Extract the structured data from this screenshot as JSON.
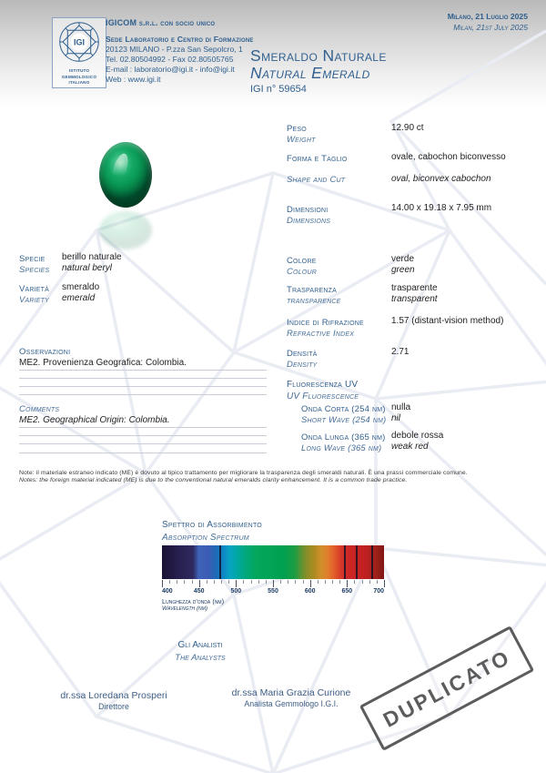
{
  "header": {
    "logo": {
      "acronym": "IGI",
      "institute_lines": [
        "ISTITUTO",
        "GEMMOLOGICO",
        "ITALIANO"
      ]
    },
    "company_line": "IGICOM s.r.l. con socio unico",
    "lab_line": "Sede Laboratorio e Centro di Formazione",
    "address": "20123 MILANO - P.zza San Sepolcro, 1",
    "phone": "Tel. 02.80504992 - Fax 02.80505765",
    "email": "E-mail : laboratorio@igi.it - info@igi.it",
    "web": "Web :  www.igi.it",
    "date_it": "Milano, 21 Luglio 2025",
    "date_en": "Milan, 21st July 2025"
  },
  "title": {
    "it": "Smeraldo Naturale",
    "en": "Natural Emerald",
    "cert_no": "IGI n° 59654"
  },
  "props": {
    "peso": {
      "it": "Peso",
      "en": "Weight",
      "value": "12.90 ct"
    },
    "forma": {
      "it": "Forma e Taglio",
      "en": "Shape and Cut",
      "value_it": "ovale, cabochon biconvesso",
      "value_en": "oval, biconvex cabochon"
    },
    "dimensioni": {
      "it": "Dimensioni",
      "en": "Dimensions",
      "value": "14.00 x 19.18 x 7.95 mm"
    },
    "specie": {
      "it": "Specie",
      "en": "Species",
      "value_it": "berillo naturale",
      "value_en": "natural beryl"
    },
    "varieta": {
      "it": "Varietà",
      "en": "Variety",
      "value_it": "smeraldo",
      "value_en": "emerald"
    },
    "colore": {
      "it": "Colore",
      "en": "Colour",
      "value_it": "verde",
      "value_en": "green"
    },
    "trasparenza": {
      "it": "Trasparenza",
      "en": "transparence",
      "value_it": "trasparente",
      "value_en": "transparent"
    },
    "rifrazione": {
      "it": "Indice di Rifrazione",
      "en": "Refractive Index",
      "value": "1.57 (distant-vision method)"
    },
    "densita": {
      "it": "Densità",
      "en": "Density",
      "value": "2.71"
    },
    "fluorescenza": {
      "it": "Fluorescenza UV",
      "en": "UV Fluorescence"
    },
    "onda_corta": {
      "it": "Onda Corta (254 nm)",
      "en": "Short Wave (254 nm)",
      "value_it": "nulla",
      "value_en": "nil"
    },
    "onda_lunga": {
      "it": "Onda Lunga (365 nm)",
      "en": "Long Wave (365 nm)",
      "value_it": "debole rossa",
      "value_en": "weak red"
    }
  },
  "observations": {
    "label_it": "Osservazioni",
    "text_it": "ME2. Provenienza Geografica: Colombia.",
    "label_en": "Comments",
    "text_en": "ME2. Geographical Origin: Colombia."
  },
  "note": {
    "it": "Note: il materiale estraneo indicato (ME) è dovuto al tipico trattamento per migliorare la trasparenza degli smeraldi naturali. È una prassi commerciale comune.",
    "en": "Notes: the foreign material indicated (ME) is due to the conventional natural emeralds clarity enhancement. It is a common trade practice."
  },
  "spectrum": {
    "title_it": "Spettro di Assorbimento",
    "title_en": "Absorption Spectrum",
    "xlabel_it": "Lunghezza d'onda (nm)",
    "xlabel_en": "Wavelength (nm)",
    "range": [
      400,
      700
    ],
    "tick_step_nm": 10,
    "labeled_ticks": [
      400,
      450,
      500,
      550,
      600,
      650,
      700
    ],
    "absorption_lines_nm": [
      477,
      646,
      662,
      683
    ]
  },
  "analysts": {
    "heading_it": "Gli Analisti",
    "heading_en": "The Analysts",
    "people": [
      {
        "name": "dr.ssa Loredana Prosperi",
        "role": "Direttore"
      },
      {
        "name": "dr.ssa Maria Grazia Curione",
        "role": "Analista Gemmologo I.G.I."
      }
    ]
  },
  "stamp": {
    "text": "DUPLICATO"
  },
  "colors": {
    "label_blue": "#31608f",
    "value_black": "#1f1f1f",
    "tick_navy": "#1d3c66",
    "stamp_gray": "#5c5c5c",
    "pattern_gray": "#eaecf3",
    "emerald_green": "#0a9a57"
  }
}
